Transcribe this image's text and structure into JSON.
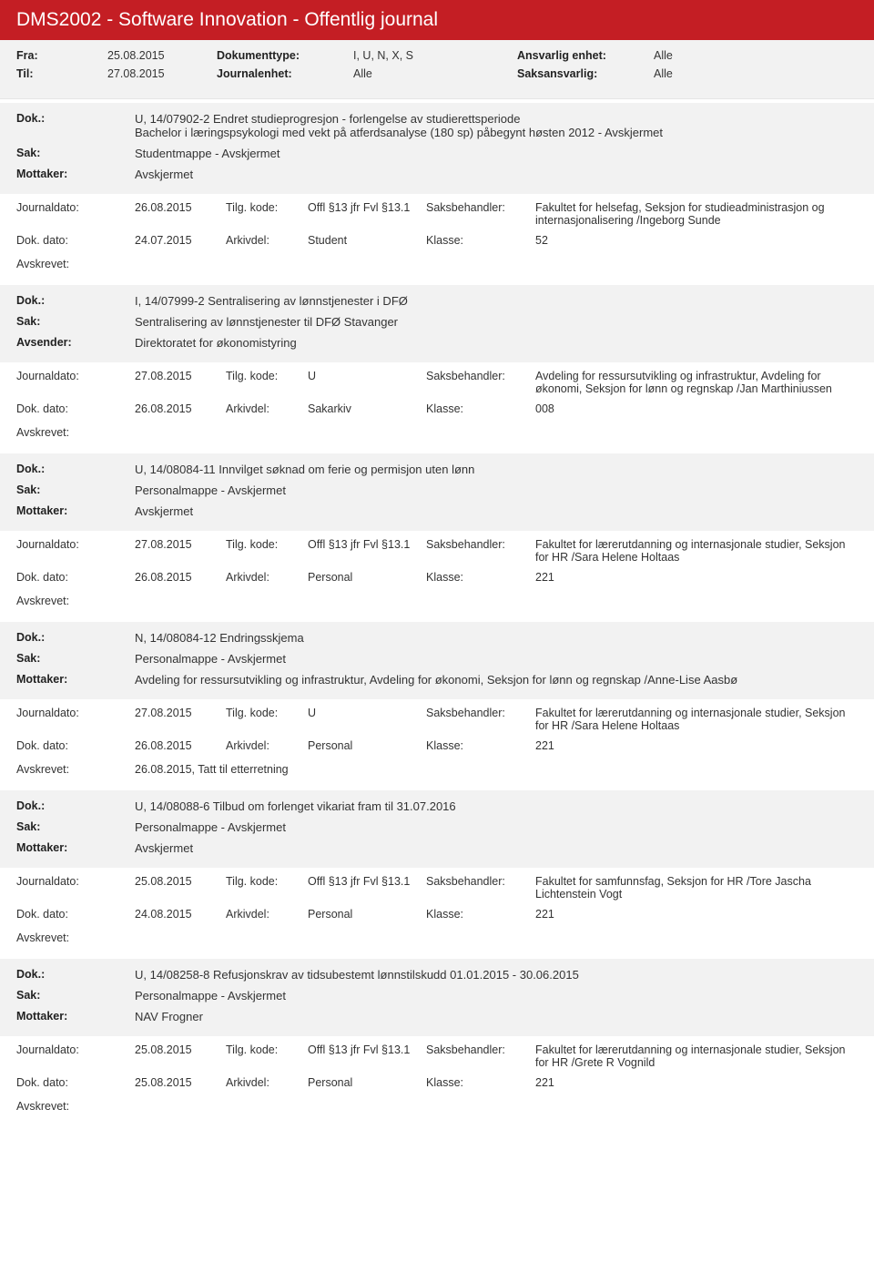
{
  "header": {
    "title": "DMS2002 - Software Innovation - Offentlig journal"
  },
  "filters": {
    "fra_label": "Fra:",
    "fra_value": "25.08.2015",
    "til_label": "Til:",
    "til_value": "27.08.2015",
    "dokumenttype_label": "Dokumenttype:",
    "dokumenttype_value": "I, U, N, X, S",
    "journalenhet_label": "Journalenhet:",
    "journalenhet_value": "Alle",
    "ansvarlig_enhet_label": "Ansvarlig enhet:",
    "ansvarlig_enhet_value": "Alle",
    "saksansvarlig_label": "Saksansvarlig:",
    "saksansvarlig_value": "Alle"
  },
  "labels": {
    "dok": "Dok.:",
    "sak": "Sak:",
    "mottaker": "Mottaker:",
    "avsender": "Avsender:",
    "journaldato": "Journaldato:",
    "tilg_kode": "Tilg. kode:",
    "saksbehandler": "Saksbehandler:",
    "dok_dato": "Dok. dato:",
    "arkivdel": "Arkivdel:",
    "klasse": "Klasse:",
    "avskrevet": "Avskrevet:"
  },
  "entries": [
    {
      "dok_line1": "U, 14/07902-2 Endret studieprogresjon - forlengelse av studierettsperiode",
      "dok_line2": "Bachelor i læringspsykologi med vekt på atferdsanalyse (180 sp) påbegynt høsten 2012 - Avskjermet",
      "sak": "Studentmappe - Avskjermet",
      "party_label": "Mottaker:",
      "party": "Avskjermet",
      "journaldato": "26.08.2015",
      "tilg_kode": "Offl §13 jfr Fvl §13.1",
      "saksbehandler": "Fakultet for helsefag, Seksjon for studieadministrasjon og internasjonalisering /Ingeborg Sunde",
      "dok_dato": "24.07.2015",
      "arkivdel": "Student",
      "klasse": "52",
      "avskrevet": ""
    },
    {
      "dok_line1": "I, 14/07999-2 Sentralisering av lønnstjenester i DFØ",
      "dok_line2": "",
      "sak": "Sentralisering av lønnstjenester til DFØ Stavanger",
      "party_label": "Avsender:",
      "party": "Direktoratet for økonomistyring",
      "journaldato": "27.08.2015",
      "tilg_kode": "U",
      "saksbehandler": "Avdeling for ressursutvikling og infrastruktur, Avdeling for økonomi, Seksjon for lønn og regnskap /Jan Marthiniussen",
      "dok_dato": "26.08.2015",
      "arkivdel": "Sakarkiv",
      "klasse": "008",
      "avskrevet": ""
    },
    {
      "dok_line1": "U, 14/08084-11 Innvilget søknad om ferie og permisjon uten lønn",
      "dok_line2": "",
      "sak": "Personalmappe - Avskjermet",
      "party_label": "Mottaker:",
      "party": "Avskjermet",
      "journaldato": "27.08.2015",
      "tilg_kode": "Offl §13 jfr Fvl §13.1",
      "saksbehandler": "Fakultet for lærerutdanning og internasjonale studier, Seksjon for HR /Sara Helene Holtaas",
      "dok_dato": "26.08.2015",
      "arkivdel": "Personal",
      "klasse": "221",
      "avskrevet": ""
    },
    {
      "dok_line1": "N, 14/08084-12 Endringsskjema",
      "dok_line2": "",
      "sak": "Personalmappe - Avskjermet",
      "party_label": "Mottaker:",
      "party": "Avdeling for ressursutvikling og infrastruktur, Avdeling for økonomi, Seksjon for lønn og regnskap /Anne-Lise Aasbø",
      "journaldato": "27.08.2015",
      "tilg_kode": "U",
      "saksbehandler": "Fakultet for lærerutdanning og internasjonale studier, Seksjon for HR /Sara Helene Holtaas",
      "dok_dato": "26.08.2015",
      "arkivdel": "Personal",
      "klasse": "221",
      "avskrevet": "26.08.2015, Tatt til etterretning"
    },
    {
      "dok_line1": "U, 14/08088-6 Tilbud om forlenget vikariat fram til 31.07.2016",
      "dok_line2": "",
      "sak": "Personalmappe - Avskjermet",
      "party_label": "Mottaker:",
      "party": "Avskjermet",
      "journaldato": "25.08.2015",
      "tilg_kode": "Offl §13 jfr Fvl §13.1",
      "saksbehandler": "Fakultet for samfunnsfag, Seksjon for HR /Tore Jascha Lichtenstein Vogt",
      "dok_dato": "24.08.2015",
      "arkivdel": "Personal",
      "klasse": "221",
      "avskrevet": ""
    },
    {
      "dok_line1": "U, 14/08258-8 Refusjonskrav av tidsubestemt lønnstilskudd 01.01.2015 - 30.06.2015",
      "dok_line2": "",
      "sak": "Personalmappe - Avskjermet",
      "party_label": "Mottaker:",
      "party": "NAV Frogner",
      "journaldato": "25.08.2015",
      "tilg_kode": "Offl §13 jfr Fvl §13.1",
      "saksbehandler": "Fakultet for lærerutdanning og internasjonale studier, Seksjon for HR /Grete R Vognild",
      "dok_dato": "25.08.2015",
      "arkivdel": "Personal",
      "klasse": "221",
      "avskrevet": ""
    }
  ]
}
